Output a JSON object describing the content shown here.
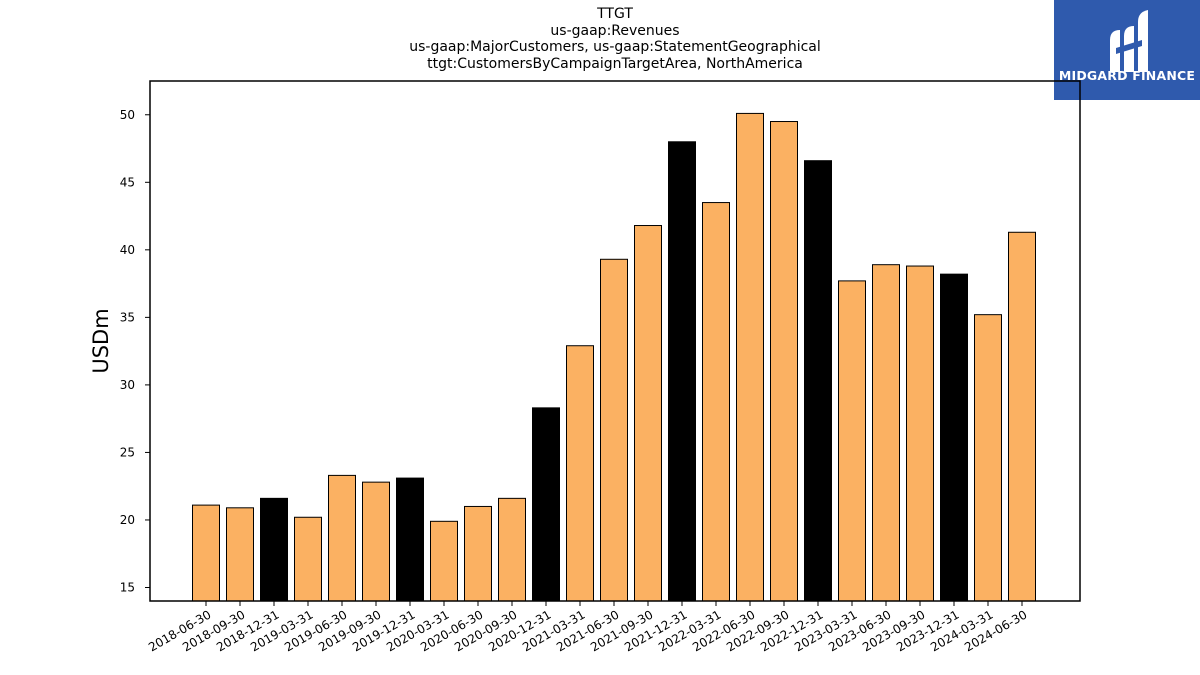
{
  "title_lines": [
    "TTGT",
    "us-gaap:Revenues",
    "us-gaap:MajorCustomers, us-gaap:StatementGeographical",
    "ttgt:CustomersByCampaignTargetArea, NorthAmerica"
  ],
  "logo": {
    "text": "MIDGARD FINANCE",
    "background": "#2f5aad"
  },
  "colors": {
    "quarter": "#fbb162",
    "year_end": "#000000"
  },
  "chart_data": {
    "type": "bar",
    "ylabel": "USDm",
    "xlabel": "",
    "ylim": [
      14,
      52.5
    ],
    "yticks": [
      15,
      20,
      25,
      30,
      35,
      40,
      45,
      50
    ],
    "grid": false,
    "categories": [
      "2018-06-30",
      "2018-09-30",
      "2018-12-31",
      "2019-03-31",
      "2019-06-30",
      "2019-09-30",
      "2019-12-31",
      "2020-03-31",
      "2020-06-30",
      "2020-09-30",
      "2020-12-31",
      "2021-03-31",
      "2021-06-30",
      "2021-09-30",
      "2021-12-31",
      "2022-03-31",
      "2022-06-30",
      "2022-09-30",
      "2022-12-31",
      "2023-03-31",
      "2023-06-30",
      "2023-09-30",
      "2023-12-31",
      "2024-03-31",
      "2024-06-30"
    ],
    "values": [
      21.1,
      20.9,
      21.6,
      20.2,
      23.3,
      22.8,
      23.1,
      19.9,
      21.0,
      21.6,
      28.3,
      32.9,
      39.3,
      41.8,
      48.0,
      43.5,
      50.1,
      49.5,
      46.6,
      37.7,
      38.9,
      38.8,
      38.2,
      35.2,
      41.3
    ]
  }
}
